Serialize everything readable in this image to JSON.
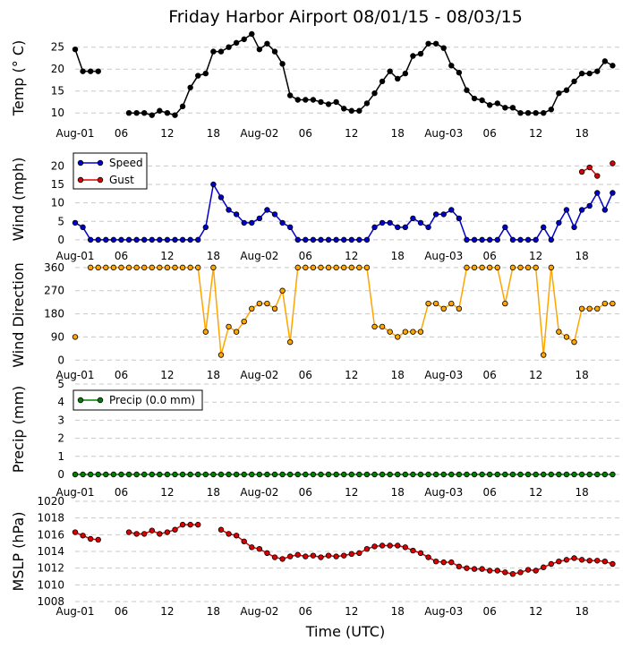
{
  "chart_data": {
    "title": "Friday Harbor Airport 08/01/15 - 08/03/15",
    "xlabel": "Time (UTC)",
    "x_unit": "hours since 2015-08-01 00:00 UTC",
    "x_range": [
      0,
      71
    ],
    "x_ticks": [
      {
        "x": 0,
        "label": "Aug-01"
      },
      {
        "x": 6,
        "label": "06"
      },
      {
        "x": 12,
        "label": "12"
      },
      {
        "x": 18,
        "label": "18"
      },
      {
        "x": 24,
        "label": "Aug-02"
      },
      {
        "x": 30,
        "label": "06"
      },
      {
        "x": 36,
        "label": "12"
      },
      {
        "x": 42,
        "label": "18"
      },
      {
        "x": 48,
        "label": "Aug-03"
      },
      {
        "x": 54,
        "label": "06"
      },
      {
        "x": 60,
        "label": "12"
      },
      {
        "x": 66,
        "label": "18"
      }
    ],
    "panels": [
      {
        "id": "temp",
        "type": "line",
        "ylabel": "Temp (° C)",
        "ylim": [
          8,
          28
        ],
        "yticks": [
          10,
          15,
          20,
          25
        ],
        "x_tick_labels": true,
        "legend": null,
        "series": [
          {
            "color": "#000000",
            "values": [
              24.5,
              19.5,
              19.5,
              19.5,
              null,
              null,
              null,
              10,
              10,
              10,
              9.5,
              10.5,
              10,
              9.5,
              11.5,
              15.8,
              18.5,
              19,
              24,
              24,
              25,
              26,
              26.8,
              28,
              24.5,
              25.8,
              24,
              21.2,
              14,
              13,
              13,
              13,
              12.5,
              12,
              12.5,
              11,
              10.5,
              10.5,
              12.2,
              14.5,
              17.2,
              19.5,
              17.8,
              19,
              23,
              23.5,
              25.8,
              25.8,
              24.8,
              20.8,
              19.2,
              15.2,
              13.3,
              12.9,
              11.8,
              12.2,
              11.2,
              11.2,
              10,
              10,
              10,
              10,
              10.8,
              14.5,
              15.2,
              17.2,
              19,
              19,
              19.5,
              21.8,
              20.8
            ]
          }
        ]
      },
      {
        "id": "wind",
        "type": "line",
        "ylabel": "Wind (mph)",
        "ylim": [
          -1,
          23
        ],
        "yticks": [
          0,
          5,
          10,
          15,
          20
        ],
        "x_tick_labels": true,
        "legend": "top-left",
        "series": [
          {
            "name": "Speed",
            "color": "#0000cc",
            "values": [
              4.6,
              3.4,
              0,
              0,
              0,
              0,
              0,
              0,
              0,
              0,
              0,
              0,
              0,
              0,
              0,
              0,
              0,
              3.4,
              15,
              11.5,
              8.1,
              6.9,
              4.6,
              4.6,
              5.8,
              8.1,
              6.9,
              4.6,
              3.4,
              0,
              0,
              0,
              0,
              0,
              0,
              0,
              0,
              0,
              0,
              3.4,
              4.6,
              4.6,
              3.4,
              3.4,
              5.8,
              4.6,
              3.4,
              6.9,
              6.9,
              8.1,
              5.8,
              0,
              0,
              0,
              0,
              0,
              3.4,
              0,
              0,
              0,
              0,
              3.4,
              0,
              4.6,
              8.1,
              3.4,
              8.1,
              9.2,
              12.7,
              8.1,
              12.7
            ]
          },
          {
            "name": "Gust",
            "color": "#dd0000",
            "values": [
              null,
              null,
              null,
              null,
              null,
              null,
              null,
              null,
              null,
              null,
              null,
              null,
              null,
              null,
              null,
              null,
              null,
              null,
              null,
              null,
              null,
              null,
              null,
              null,
              null,
              null,
              null,
              null,
              null,
              null,
              null,
              null,
              null,
              null,
              null,
              null,
              null,
              null,
              null,
              null,
              null,
              null,
              null,
              null,
              null,
              null,
              null,
              null,
              null,
              null,
              null,
              null,
              null,
              null,
              null,
              null,
              null,
              null,
              null,
              null,
              null,
              null,
              null,
              null,
              null,
              null,
              18.4,
              19.6,
              17.3,
              null,
              20.7
            ]
          }
        ]
      },
      {
        "id": "dir",
        "type": "line",
        "ylabel": "Wind Direction",
        "ylim": [
          -20,
          370
        ],
        "yticks": [
          0,
          90,
          180,
          270,
          360
        ],
        "x_tick_labels": true,
        "legend": null,
        "series": [
          {
            "color": "#ffa500",
            "values": [
              90,
              null,
              360,
              360,
              360,
              360,
              360,
              360,
              360,
              360,
              360,
              360,
              360,
              360,
              360,
              360,
              360,
              110,
              360,
              20,
              130,
              110,
              150,
              200,
              220,
              220,
              200,
              270,
              70,
              360,
              360,
              360,
              360,
              360,
              360,
              360,
              360,
              360,
              360,
              130,
              130,
              110,
              90,
              110,
              110,
              110,
              220,
              220,
              200,
              220,
              200,
              360,
              360,
              360,
              360,
              360,
              220,
              360,
              360,
              360,
              360,
              20,
              360,
              110,
              90,
              70,
              200,
              200,
              200,
              220,
              220
            ]
          }
        ]
      },
      {
        "id": "precip",
        "type": "line",
        "ylabel": "Precip (mm)",
        "ylim": [
          0,
          5
        ],
        "yticks": [
          0,
          1,
          2,
          3,
          4,
          5
        ],
        "x_tick_labels": true,
        "legend": "top-left",
        "series": [
          {
            "name": "Precip (0.0 mm)",
            "color": "#008000",
            "values": [
              0,
              0,
              0,
              0,
              0,
              0,
              0,
              0,
              0,
              0,
              0,
              0,
              0,
              0,
              0,
              0,
              0,
              0,
              0,
              0,
              0,
              0,
              0,
              0,
              0,
              0,
              0,
              0,
              0,
              0,
              0,
              0,
              0,
              0,
              0,
              0,
              0,
              0,
              0,
              0,
              0,
              0,
              0,
              0,
              0,
              0,
              0,
              0,
              0,
              0,
              0,
              0,
              0,
              0,
              0,
              0,
              0,
              0,
              0,
              0,
              0,
              0,
              0,
              0,
              0,
              0,
              0,
              0,
              0,
              0,
              0
            ]
          }
        ]
      },
      {
        "id": "mslp",
        "type": "line",
        "ylabel": "MSLP (hPa)",
        "ylim": [
          1008,
          1020
        ],
        "yticks": [
          1008,
          1010,
          1012,
          1014,
          1016,
          1018,
          1020
        ],
        "x_tick_labels": true,
        "legend": null,
        "series": [
          {
            "color": "#dd0000",
            "values": [
              1016.3,
              1015.9,
              1015.5,
              1015.4,
              null,
              null,
              null,
              1016.3,
              1016.1,
              1016.1,
              1016.5,
              1016.1,
              1016.3,
              1016.6,
              1017.2,
              1017.2,
              1017.2,
              null,
              null,
              1016.6,
              1016.1,
              1015.9,
              1015.2,
              1014.5,
              1014.3,
              1013.8,
              1013.3,
              1013.1,
              1013.4,
              1013.6,
              1013.4,
              1013.5,
              1013.3,
              1013.5,
              1013.4,
              1013.5,
              1013.7,
              1013.8,
              1014.3,
              1014.6,
              1014.7,
              1014.7,
              1014.7,
              1014.5,
              1014.1,
              1013.8,
              1013.3,
              1012.8,
              1012.7,
              1012.7,
              1012.2,
              1012,
              1011.9,
              1011.9,
              1011.7,
              1011.7,
              1011.5,
              1011.3,
              1011.5,
              1011.8,
              1011.7,
              1012.1,
              1012.5,
              1012.8,
              1013,
              1013.2,
              1013,
              1012.9,
              1012.9,
              1012.8,
              1012.5
            ]
          }
        ]
      }
    ]
  }
}
